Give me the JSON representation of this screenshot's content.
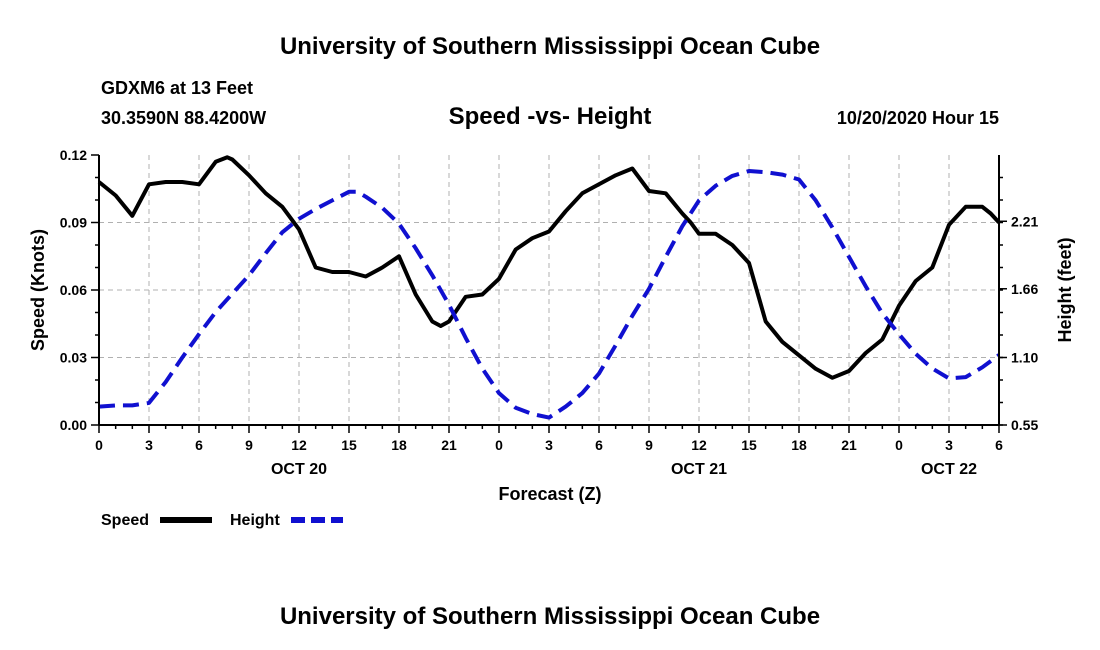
{
  "header": {
    "title_top": "University of Southern Mississippi Ocean Cube",
    "title_bottom": "University of Southern Mississippi Ocean Cube",
    "station": "GDXM6 at 13 Feet",
    "location": "30.3590N 88.4200W",
    "datetime": "10/20/2020 Hour 15"
  },
  "colors": {
    "speed": "#000000",
    "height": "#1010d0",
    "grid": "#b0b0b0"
  },
  "chart_data": {
    "type": "line",
    "title": "Speed -vs- Height",
    "xlabel": "Forecast (Z)",
    "ylabel": "Speed (Knots)",
    "ylabel_right": "Height (feet)",
    "x_unit": "hours from 10/20 00Z",
    "xlim": [
      0,
      54
    ],
    "ylim": [
      0,
      0.12
    ],
    "ylim_right": [
      0.55,
      2.75
    ],
    "x_ticks": [
      0,
      3,
      6,
      9,
      12,
      15,
      18,
      21,
      24,
      27,
      30,
      33,
      36,
      39,
      42,
      45,
      48,
      51,
      54
    ],
    "x_tick_labels": [
      "0",
      "3",
      "6",
      "9",
      "12",
      "15",
      "18",
      "21",
      "0",
      "3",
      "6",
      "9",
      "12",
      "15",
      "18",
      "21",
      "0",
      "3",
      "6"
    ],
    "date_labels": [
      {
        "x": 12,
        "label": "OCT 20"
      },
      {
        "x": 36,
        "label": "OCT 21"
      },
      {
        "x": 51,
        "label": "OCT 22"
      }
    ],
    "y_ticks": [
      0.0,
      0.03,
      0.06,
      0.09,
      0.12
    ],
    "y_tick_labels": [
      "0.00",
      "0.03",
      "0.06",
      "0.09",
      "0.12"
    ],
    "y_ticks_right": [
      0.55,
      1.1,
      1.66,
      2.21
    ],
    "y_tick_labels_right": [
      "0.55",
      "1.10",
      "1.66",
      "2.21"
    ],
    "grid": true,
    "legend": [
      {
        "name": "Speed",
        "style": "solid"
      },
      {
        "name": "Height",
        "style": "dashed"
      }
    ],
    "series": [
      {
        "name": "Speed",
        "axis": "left",
        "x": [
          0,
          1,
          2,
          3,
          4,
          5,
          6,
          7,
          7.7,
          8,
          9,
          10,
          11,
          12,
          13,
          14,
          15,
          16,
          17,
          18,
          19,
          20,
          20.5,
          21,
          22,
          23,
          24,
          25,
          26,
          27,
          28,
          29,
          30,
          31,
          32,
          33,
          34,
          35,
          35.5,
          36,
          36.5,
          37,
          38,
          39,
          40,
          41,
          42,
          43,
          44,
          45,
          46,
          47,
          48,
          49,
          50,
          51,
          52,
          53,
          53.5,
          54
        ],
        "values": [
          0.108,
          0.102,
          0.093,
          0.107,
          0.108,
          0.108,
          0.107,
          0.117,
          0.119,
          0.118,
          0.111,
          0.103,
          0.097,
          0.087,
          0.07,
          0.068,
          0.068,
          0.066,
          0.07,
          0.075,
          0.058,
          0.046,
          0.044,
          0.046,
          0.057,
          0.058,
          0.065,
          0.078,
          0.083,
          0.086,
          0.095,
          0.103,
          0.107,
          0.111,
          0.114,
          0.104,
          0.103,
          0.094,
          0.09,
          0.085,
          0.085,
          0.085,
          0.08,
          0.072,
          0.046,
          0.037,
          0.031,
          0.025,
          0.021,
          0.024,
          0.032,
          0.038,
          0.053,
          0.064,
          0.07,
          0.089,
          0.097,
          0.097,
          0.094,
          0.09
        ]
      },
      {
        "name": "Height",
        "axis": "right",
        "x": [
          0,
          1,
          2,
          3,
          4,
          5,
          6,
          7,
          8,
          9,
          10,
          11,
          12,
          13,
          14,
          15,
          15.5,
          16,
          17,
          18,
          19,
          20,
          21,
          22,
          23,
          24,
          25,
          26,
          27,
          28,
          29,
          30,
          31,
          32,
          33,
          34,
          35,
          36,
          37,
          38,
          39,
          40,
          41,
          42,
          43,
          44,
          45,
          46,
          47,
          48,
          49,
          50,
          51,
          52,
          53,
          54
        ],
        "values": [
          0.7,
          0.71,
          0.71,
          0.73,
          0.9,
          1.1,
          1.29,
          1.47,
          1.62,
          1.77,
          1.95,
          2.12,
          2.23,
          2.31,
          2.38,
          2.45,
          2.45,
          2.41,
          2.32,
          2.19,
          1.99,
          1.77,
          1.53,
          1.26,
          1.01,
          0.81,
          0.69,
          0.64,
          0.61,
          0.7,
          0.81,
          0.97,
          1.2,
          1.44,
          1.66,
          1.92,
          2.17,
          2.38,
          2.5,
          2.58,
          2.62,
          2.61,
          2.59,
          2.55,
          2.38,
          2.16,
          1.92,
          1.68,
          1.46,
          1.29,
          1.13,
          1.01,
          0.93,
          0.94,
          1.02,
          1.12
        ]
      }
    ]
  }
}
